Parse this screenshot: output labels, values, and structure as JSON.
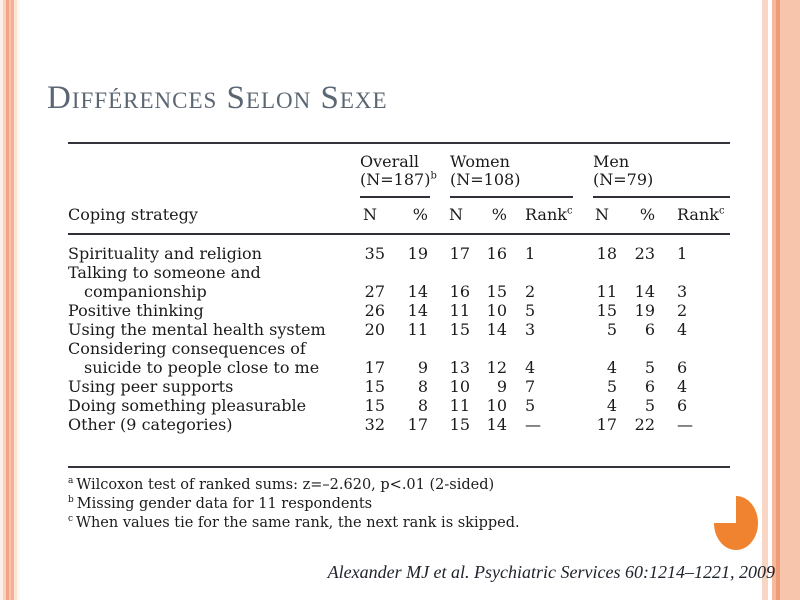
{
  "title": "Différences Selon Sexe",
  "table": {
    "corner_label": "Coping strategy",
    "groups": [
      {
        "line1": "Overall",
        "line2": "(N=187)",
        "sup": "b",
        "span": 2
      },
      {
        "line1": "Women",
        "line2": "(N=108)",
        "sup": "",
        "span": 3
      },
      {
        "line1": "Men",
        "line2": "(N=79)",
        "sup": "",
        "span": 3
      }
    ],
    "columns": [
      {
        "label": "N",
        "sup": "",
        "type": "num"
      },
      {
        "label": "%",
        "sup": "",
        "type": "num"
      },
      {
        "label": "N",
        "sup": "",
        "type": "num"
      },
      {
        "label": "%",
        "sup": "",
        "type": "num"
      },
      {
        "label": "Rank",
        "sup": "c",
        "type": "rank"
      },
      {
        "label": "N",
        "sup": "",
        "type": "num"
      },
      {
        "label": "%",
        "sup": "",
        "type": "num"
      },
      {
        "label": "Rank",
        "sup": "c",
        "type": "rank"
      }
    ],
    "rows": [
      {
        "strategy": "Spirituality and religion",
        "values": [
          "35",
          "19",
          "17",
          "16",
          "1",
          "18",
          "23",
          "1"
        ]
      },
      {
        "strategy": "Talking to someone and\ncompanionship",
        "values": [
          "27",
          "14",
          "16",
          "15",
          "2",
          "11",
          "14",
          "3"
        ]
      },
      {
        "strategy": "Positive thinking",
        "values": [
          "26",
          "14",
          "11",
          "10",
          "5",
          "15",
          "19",
          "2"
        ]
      },
      {
        "strategy": "Using the mental health system",
        "values": [
          "20",
          "11",
          "15",
          "14",
          "3",
          "5",
          "6",
          "4"
        ]
      },
      {
        "strategy": "Considering consequences of\nsuicide to people close to me",
        "values": [
          "17",
          "9",
          "13",
          "12",
          "4",
          "4",
          "5",
          "6"
        ]
      },
      {
        "strategy": "Using peer supports",
        "values": [
          "15",
          "8",
          "10",
          "9",
          "7",
          "5",
          "6",
          "4"
        ]
      },
      {
        "strategy": "Doing something pleasurable",
        "values": [
          "15",
          "8",
          "11",
          "10",
          "5",
          "4",
          "5",
          "6"
        ]
      },
      {
        "strategy": "Other (9 categories)",
        "values": [
          "32",
          "17",
          "15",
          "14",
          "—",
          "17",
          "22",
          "—"
        ]
      }
    ],
    "footnotes": [
      {
        "marker": "a",
        "text": "Wilcoxon test of ranked sums: z=–2.620, p<.01 (2-sided)"
      },
      {
        "marker": "b",
        "text": "Missing gender data for 11 respondents"
      },
      {
        "marker": "c",
        "text": "When values tie for the same rank, the next rank is skipped."
      }
    ]
  },
  "citation": "Alexander MJ et al. Psychiatric Services 60:1214–1221, 2009",
  "colors": {
    "title": "#5B6673",
    "accent-orange": "#F0832F",
    "stripe-light": "#F9D6C3",
    "stripe-medium": "#F5B99D",
    "stripe-dark": "#F09B77"
  }
}
